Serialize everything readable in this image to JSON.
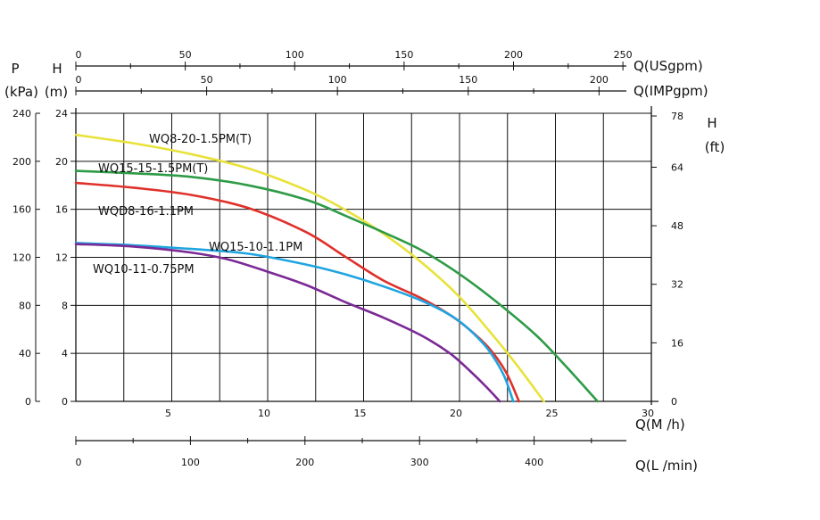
{
  "chart_data": {
    "type": "line",
    "x_unit": "Q(M /h)",
    "x_ticks": [
      "5",
      "10",
      "15",
      "20",
      "25",
      "30"
    ],
    "xlim": [
      0,
      30
    ],
    "ylim": [
      0,
      24
    ],
    "series": [
      {
        "name": "WQ8-20-1.5PM(T)",
        "color": "#e8e23a",
        "x": [
          0,
          3,
          6,
          9,
          12,
          14,
          16,
          18,
          20,
          22,
          23,
          24.4
        ],
        "y": [
          22.2,
          21.5,
          20.6,
          19.4,
          17.6,
          16.0,
          14.0,
          11.6,
          8.7,
          5.0,
          3.0,
          0
        ]
      },
      {
        "name": "WQ15-15-1.5PM(T)",
        "color": "#2e9b47",
        "x": [
          0,
          3,
          6,
          9,
          12,
          14,
          16,
          18,
          20,
          22,
          24,
          25.5,
          27.2
        ],
        "y": [
          19.2,
          19.0,
          18.7,
          18.0,
          16.8,
          15.5,
          14.1,
          12.6,
          10.6,
          8.2,
          5.5,
          3.0,
          0
        ]
      },
      {
        "name": "WQD8-16-1.1PM",
        "color": "#e0302a",
        "x": [
          0,
          3,
          6,
          9,
          12,
          14,
          16,
          18,
          19.5,
          20.5,
          21.5,
          22.4,
          23.1
        ],
        "y": [
          18.2,
          17.8,
          17.2,
          16.1,
          14.1,
          12.1,
          10.1,
          8.6,
          7.2,
          6.0,
          4.5,
          2.5,
          0
        ]
      },
      {
        "name": "WQ15-10-1.1PM",
        "color": "#1fa4e0",
        "x": [
          0,
          3,
          6,
          9,
          12,
          14,
          16,
          18,
          19.5,
          20.5,
          21.5,
          22.3,
          22.8
        ],
        "y": [
          13.2,
          13.0,
          12.7,
          12.3,
          11.4,
          10.6,
          9.6,
          8.4,
          7.2,
          6.0,
          4.3,
          2.2,
          0
        ]
      },
      {
        "name": "WQ10-11-0.75PM",
        "color": "#7b2a95",
        "x": [
          0,
          3,
          6,
          8,
          10,
          12,
          14,
          16,
          18,
          19.5,
          20.5,
          21.4,
          22.1
        ],
        "y": [
          13.1,
          12.9,
          12.4,
          11.8,
          10.8,
          9.7,
          8.3,
          7.0,
          5.5,
          4.0,
          2.6,
          1.2,
          0
        ]
      }
    ],
    "left_axes": {
      "p_title": "P",
      "p_unit": "(kPa)",
      "p_ticks": [
        "0",
        "40",
        "80",
        "120",
        "160",
        "200",
        "240"
      ],
      "h_title": "H",
      "h_unit": "(m)",
      "h_ticks": [
        "0",
        "4",
        "8",
        "12",
        "16",
        "20",
        "24"
      ]
    },
    "right_axis": {
      "title": "H",
      "unit": "(ft)",
      "ticks": [
        "0",
        "16",
        "32",
        "48",
        "64",
        "78"
      ]
    },
    "top_axis_usgpm": {
      "unit": "Q(USgpm)",
      "ticks": [
        "0",
        "50",
        "100",
        "150",
        "200",
        "250"
      ]
    },
    "top_axis_impgpm": {
      "unit": "Q(IMPgpm)",
      "ticks": [
        "0",
        "50",
        "100",
        "150",
        "200"
      ]
    },
    "bottom_axis_lmin": {
      "unit": "Q(L /min)",
      "ticks": [
        "0",
        "100",
        "200",
        "300",
        "400"
      ]
    },
    "grid": true
  }
}
